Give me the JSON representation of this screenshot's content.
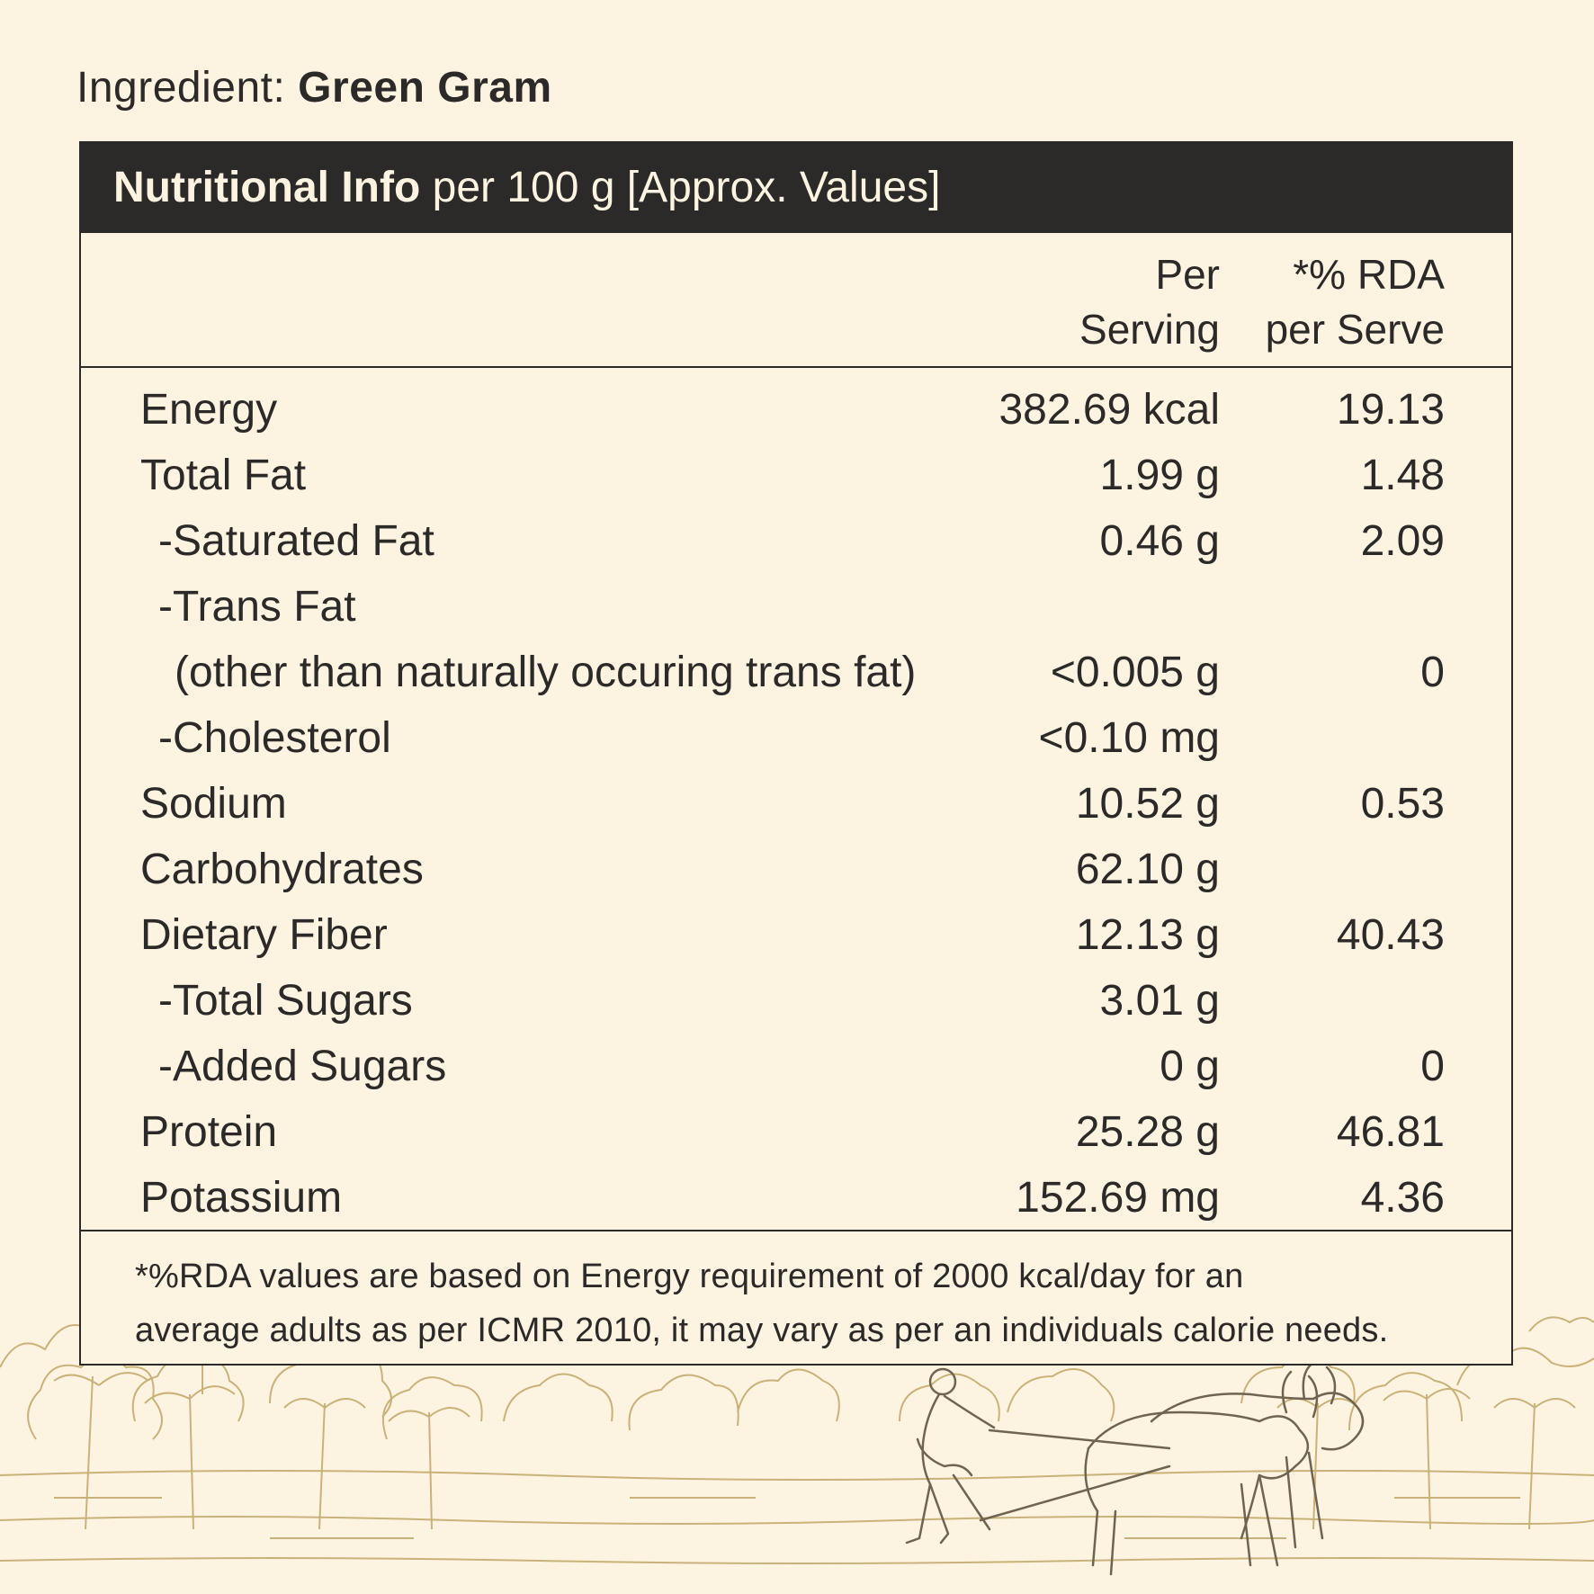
{
  "ingredient": {
    "prefix": "Ingredient:",
    "name": "Green Gram"
  },
  "panel": {
    "title_bold": "Nutritional Info",
    "title_rest": "per 100 g [Approx. Values]"
  },
  "columns": {
    "per_serving_line1": "Per",
    "per_serving_line2": "Serving",
    "rda_line1": "*% RDA",
    "rda_line2": "per Serve"
  },
  "rows": [
    {
      "label": "Energy",
      "value": "382.69 kcal",
      "rda": "19.13"
    },
    {
      "label": "Total Fat",
      "value": "1.99 g",
      "rda": "1.48"
    },
    {
      "label": "-Saturated Fat",
      "value": "0.46 g",
      "rda": "2.09"
    },
    {
      "label": "-Trans Fat",
      "value": "",
      "rda": ""
    },
    {
      "label": "(other than naturally occuring trans fat)",
      "value": "<0.005 g",
      "rda": "0"
    },
    {
      "label": "-Cholesterol",
      "value": "<0.10 mg",
      "rda": ""
    },
    {
      "label": "Sodium",
      "value": "10.52 g",
      "rda": "0.53"
    },
    {
      "label": "Carbohydrates",
      "value": "62.10 g",
      "rda": ""
    },
    {
      "label": "Dietary Fiber",
      "value": "12.13 g",
      "rda": "40.43"
    },
    {
      "label": "-Total Sugars",
      "value": "3.01 g",
      "rda": ""
    },
    {
      "label": "-Added Sugars",
      "value": "0 g",
      "rda": "0"
    },
    {
      "label": "Protein",
      "value": "25.28 g",
      "rda": "46.81"
    },
    {
      "label": "Potassium",
      "value": "152.69 mg",
      "rda": "4.36"
    }
  ],
  "footnote": {
    "line1": "*%RDA values are based on Energy requirement of 2000 kcal/day for an",
    "line2": "average adults as per ICMR 2010, it may vary as per an individuals calorie needs."
  },
  "colors": {
    "background": "#fdf3e1",
    "ink": "#2c2a28",
    "illustration": "#c9b27a"
  }
}
